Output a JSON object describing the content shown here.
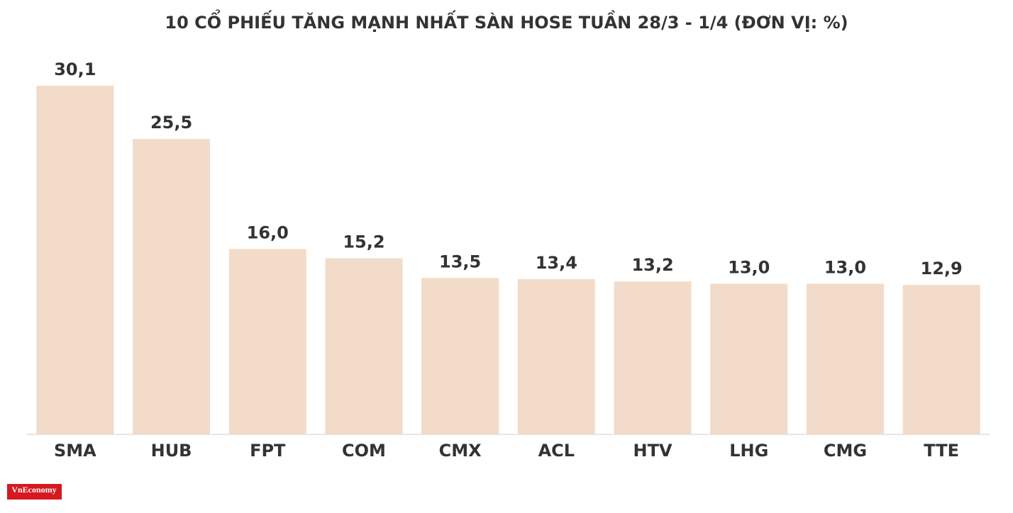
{
  "chart_data": {
    "type": "bar",
    "title": "10 CỔ PHIẾU TĂNG MẠNH NHẤT SÀN HOSE TUẦN 28/3 - 1/4 (ĐƠN VỊ: %)",
    "categories": [
      "SMA",
      "HUB",
      "FPT",
      "COM",
      "CMX",
      "ACL",
      "HTV",
      "LHG",
      "CMG",
      "TTE"
    ],
    "values": [
      30.1,
      25.5,
      16.0,
      15.2,
      13.5,
      13.4,
      13.2,
      13.0,
      13.0,
      12.9
    ],
    "value_labels": [
      "30,1",
      "25,5",
      "16,0",
      "15,2",
      "13,5",
      "13,4",
      "13,2",
      "13,0",
      "13,0",
      "12,9"
    ],
    "color": "#f2dbc8",
    "logo": "VnEconomy"
  }
}
